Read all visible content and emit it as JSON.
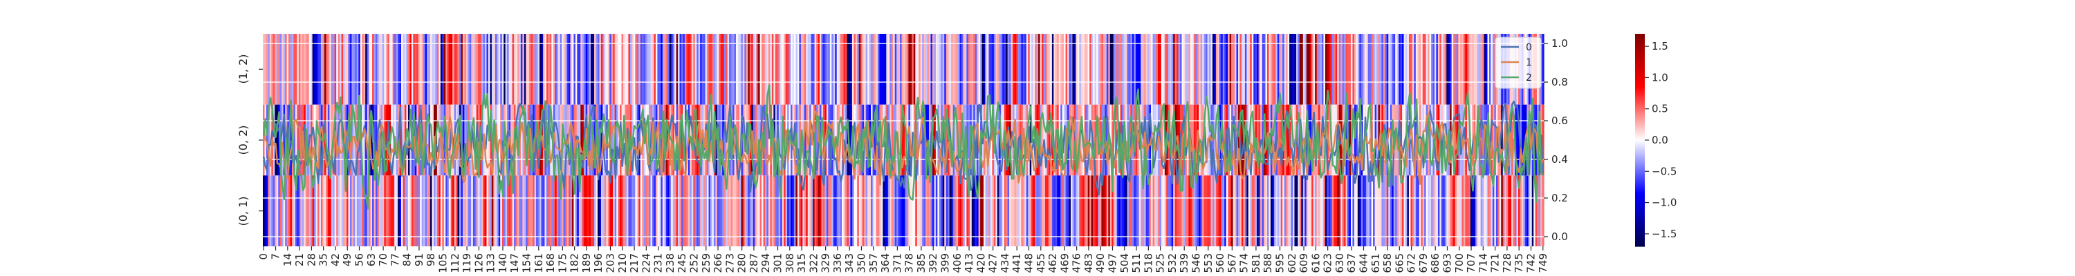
{
  "chart_data": [
    {
      "type": "heatmap",
      "title": "",
      "xlabel": "",
      "ylabel": "",
      "rows": [
        "(1, 2)",
        "(0, 2)",
        "(0, 1)"
      ],
      "columns_count": 750,
      "xtick_labels": [
        "0",
        "7",
        "14",
        "21",
        "28",
        "35",
        "42",
        "49",
        "56",
        "63",
        "70",
        "77",
        "84",
        "91",
        "98",
        "105",
        "112",
        "119",
        "126",
        "133",
        "140",
        "147",
        "154",
        "161",
        "168",
        "175",
        "182",
        "189",
        "196",
        "203",
        "210",
        "217",
        "224",
        "231",
        "238",
        "245",
        "252",
        "259",
        "266",
        "273",
        "280",
        "287",
        "294",
        "301",
        "308",
        "315",
        "322",
        "329",
        "336",
        "343",
        "350",
        "357",
        "364",
        "371",
        "378",
        "385",
        "392",
        "399",
        "406",
        "413",
        "420",
        "427",
        "434",
        "441",
        "448",
        "455",
        "462",
        "469",
        "476",
        "483",
        "490",
        "497",
        "504",
        "511",
        "518",
        "525",
        "532",
        "539",
        "546",
        "553",
        "560",
        "567",
        "574",
        "581",
        "588",
        "595",
        "602",
        "609",
        "616",
        "623",
        "630",
        "637",
        "644",
        "651",
        "658",
        "665",
        "672",
        "679",
        "686",
        "693",
        "700",
        "707",
        "714",
        "721",
        "728",
        "735",
        "742",
        "749"
      ],
      "colormap": "seismic",
      "color_range": [
        -1.7,
        1.7
      ],
      "colorbar_ticks": [
        "1.5",
        "1.0",
        "0.5",
        "0.0",
        "−0.5",
        "−1.0",
        "−1.5"
      ],
      "grid": true
    },
    {
      "type": "line",
      "x_range": [
        0,
        749
      ],
      "ylim": [
        -0.05,
        1.05
      ],
      "yticks": [
        "1.0",
        "0.8",
        "0.6",
        "0.4",
        "0.2",
        "0.0"
      ],
      "legend_position": "top-right",
      "series": [
        {
          "name": "0",
          "color": "#4c72b0",
          "center": 0.47,
          "amplitude": 0.34
        },
        {
          "name": "1",
          "color": "#dd8452",
          "center": 0.46,
          "amplitude": 0.26
        },
        {
          "name": "2",
          "color": "#55a868",
          "center": 0.48,
          "amplitude": 0.42
        }
      ]
    }
  ]
}
